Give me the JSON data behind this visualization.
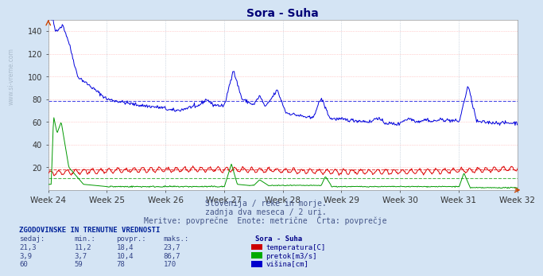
{
  "title": "Sora - Suha",
  "subtitle1": "Slovenija / reke in morje.",
  "subtitle2": "zadnja dva meseca / 2 uri.",
  "subtitle3": "Meritve: povprečne  Enote: metrične  Črta: povprečje",
  "xlabel_weeks": [
    "Week 24",
    "Week 25",
    "Week 26",
    "Week 27",
    "Week 28",
    "Week 29",
    "Week 30",
    "Week 31",
    "Week 32"
  ],
  "ylim": [
    0,
    150
  ],
  "yticks": [
    20,
    40,
    60,
    80,
    100,
    120,
    140
  ],
  "n_points": 672,
  "avg_blue": 78,
  "avg_red": 18.4,
  "avg_green": 10.4,
  "bg_color": "#d4e4f4",
  "plot_bg": "#ffffff",
  "grid_color_h": "#ffaaaa",
  "grid_color_v": "#aabbcc",
  "line_blue": "#0000dd",
  "line_red": "#dd0000",
  "line_green": "#009900",
  "table_header": "ZGODOVINSKE IN TRENUTNE VREDNOSTI",
  "col_headers": [
    "sedaj:",
    "min.:",
    "povpr.:",
    "maks.:"
  ],
  "station_name": "Sora - Suha",
  "rows": [
    {
      "sedaj": "21,3",
      "min": "11,2",
      "povpr": "18,4",
      "maks": "23,7",
      "color": "#cc0000",
      "label": "temperatura[C]"
    },
    {
      "sedaj": "3,9",
      "min": "3,7",
      "povpr": "10,4",
      "maks": "86,7",
      "color": "#00aa00",
      "label": "pretok[m3/s]"
    },
    {
      "sedaj": "60",
      "min": "59",
      "povpr": "78",
      "maks": "170",
      "color": "#0000cc",
      "label": "višina[cm]"
    }
  ]
}
